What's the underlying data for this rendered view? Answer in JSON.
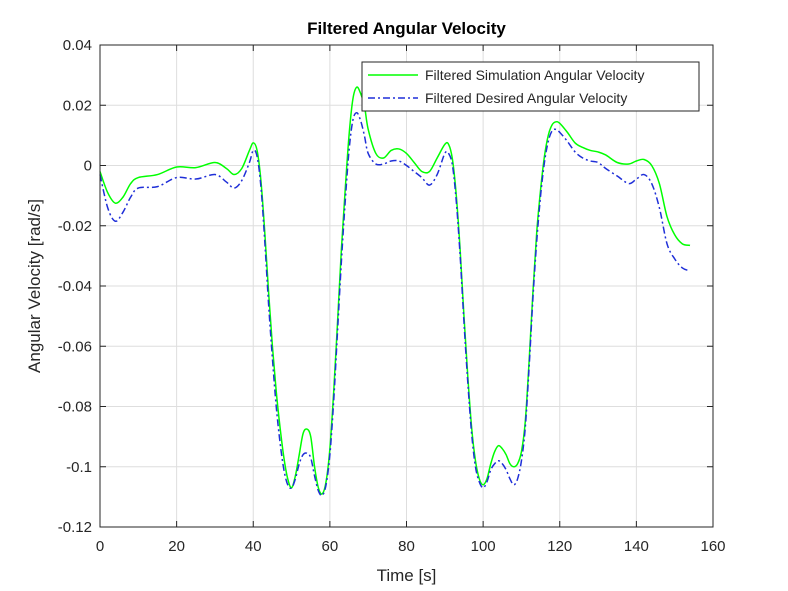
{
  "chart_data": {
    "type": "line",
    "title": "Filtered Angular Velocity",
    "xlabel": "Time [s]",
    "ylabel": "Angular Velocity [rad/s]",
    "xlim": [
      0,
      160
    ],
    "ylim": [
      -0.12,
      0.04
    ],
    "xticks": [
      0,
      20,
      40,
      60,
      80,
      100,
      120,
      140,
      160
    ],
    "xtick_labels": [
      "0",
      "20",
      "40",
      "60",
      "80",
      "100",
      "120",
      "140",
      "160"
    ],
    "yticks": [
      -0.12,
      -0.1,
      -0.08,
      -0.06,
      -0.04,
      -0.02,
      0,
      0.02,
      0.04
    ],
    "ytick_labels": [
      "-0.12",
      "-0.1",
      "-0.08",
      "-0.06",
      "-0.04",
      "-0.02",
      "0",
      "0.02",
      "0.04"
    ],
    "grid": true,
    "legend_position": "top-right",
    "series": [
      {
        "name": "Filtered Simulation Angular Velocity",
        "color": "#00ff00",
        "style": "solid",
        "x": [
          0,
          2,
          4,
          6,
          8,
          10,
          15,
          20,
          25,
          30,
          33,
          35,
          37,
          39,
          40,
          41,
          42,
          43,
          44,
          45,
          46,
          47,
          48,
          49,
          50,
          51,
          52,
          53,
          54,
          55,
          56,
          57,
          58,
          59,
          60,
          61,
          62,
          63,
          64,
          65,
          66,
          67,
          68,
          69,
          70,
          72,
          74,
          76,
          78,
          80,
          82,
          84,
          86,
          88,
          90,
          91,
          92,
          93,
          94,
          95,
          96,
          97,
          98,
          99,
          100,
          101,
          102,
          103,
          104,
          105,
          106,
          107,
          108,
          109,
          110,
          111,
          112,
          113,
          114,
          115,
          116,
          117,
          118,
          119,
          120,
          122,
          124,
          126,
          128,
          130,
          132,
          135,
          138,
          140,
          142,
          144,
          146,
          148,
          150,
          152,
          154
        ],
        "values": [
          -0.002,
          -0.009,
          -0.0125,
          -0.0105,
          -0.006,
          -0.004,
          -0.003,
          -0.0005,
          -0.0007,
          0.001,
          -0.001,
          -0.003,
          -0.001,
          0.005,
          0.0075,
          0.005,
          -0.005,
          -0.022,
          -0.042,
          -0.06,
          -0.075,
          -0.087,
          -0.097,
          -0.104,
          -0.107,
          -0.103,
          -0.096,
          -0.089,
          -0.0875,
          -0.09,
          -0.1,
          -0.107,
          -0.109,
          -0.105,
          -0.094,
          -0.075,
          -0.052,
          -0.028,
          -0.008,
          0.01,
          0.022,
          0.026,
          0.024,
          0.02,
          0.012,
          0.004,
          0.0025,
          0.005,
          0.0055,
          0.004,
          0.001,
          -0.002,
          -0.002,
          0.0025,
          0.007,
          0.007,
          0.002,
          -0.01,
          -0.028,
          -0.05,
          -0.07,
          -0.087,
          -0.098,
          -0.104,
          -0.106,
          -0.104,
          -0.099,
          -0.095,
          -0.093,
          -0.094,
          -0.096,
          -0.099,
          -0.1,
          -0.099,
          -0.095,
          -0.085,
          -0.065,
          -0.042,
          -0.022,
          -0.008,
          0.003,
          0.01,
          0.0135,
          0.0145,
          0.014,
          0.011,
          0.0075,
          0.006,
          0.005,
          0.0045,
          0.0035,
          0.001,
          0.0005,
          0.0015,
          0.002,
          0.0,
          -0.006,
          -0.017,
          -0.023,
          -0.026,
          -0.0265
        ]
      },
      {
        "name": "Filtered Desired Angular Velocity",
        "color": "#1f2fd8",
        "style": "dash-dot",
        "x": [
          0,
          2,
          4,
          6,
          8,
          10,
          15,
          20,
          25,
          30,
          33,
          35,
          37,
          39,
          40,
          41,
          42,
          43,
          44,
          45,
          46,
          47,
          48,
          49,
          50,
          51,
          52,
          53,
          54,
          55,
          56,
          57,
          58,
          59,
          60,
          61,
          62,
          63,
          64,
          65,
          66,
          67,
          68,
          69,
          70,
          72,
          74,
          76,
          78,
          80,
          82,
          84,
          86,
          88,
          90,
          91,
          92,
          93,
          94,
          95,
          96,
          97,
          98,
          99,
          100,
          101,
          102,
          103,
          104,
          105,
          106,
          107,
          108,
          109,
          110,
          111,
          112,
          113,
          114,
          115,
          116,
          117,
          118,
          119,
          120,
          122,
          124,
          126,
          128,
          130,
          132,
          135,
          138,
          140,
          142,
          144,
          146,
          148,
          150,
          152,
          154
        ],
        "values": [
          -0.003,
          -0.014,
          -0.0185,
          -0.0155,
          -0.0105,
          -0.0075,
          -0.007,
          -0.004,
          -0.0045,
          -0.003,
          -0.0055,
          -0.0075,
          -0.005,
          0.001,
          0.005,
          0.003,
          -0.007,
          -0.025,
          -0.046,
          -0.064,
          -0.08,
          -0.092,
          -0.101,
          -0.106,
          -0.107,
          -0.104,
          -0.099,
          -0.096,
          -0.0955,
          -0.097,
          -0.103,
          -0.108,
          -0.1095,
          -0.106,
          -0.096,
          -0.078,
          -0.055,
          -0.032,
          -0.012,
          0.005,
          0.015,
          0.0175,
          0.015,
          0.01,
          0.004,
          0.0005,
          0.0005,
          0.0015,
          0.0015,
          0.0,
          -0.002,
          -0.004,
          -0.0065,
          -0.003,
          0.004,
          0.004,
          0.0,
          -0.012,
          -0.03,
          -0.052,
          -0.072,
          -0.089,
          -0.1,
          -0.105,
          -0.107,
          -0.105,
          -0.101,
          -0.099,
          -0.098,
          -0.099,
          -0.101,
          -0.104,
          -0.106,
          -0.104,
          -0.098,
          -0.087,
          -0.067,
          -0.044,
          -0.025,
          -0.01,
          0.001,
          0.008,
          0.0115,
          0.012,
          0.011,
          0.008,
          0.0045,
          0.0025,
          0.0015,
          0.001,
          -0.001,
          -0.0035,
          -0.006,
          -0.0045,
          -0.003,
          -0.006,
          -0.014,
          -0.026,
          -0.031,
          -0.034,
          -0.035
        ]
      }
    ]
  }
}
